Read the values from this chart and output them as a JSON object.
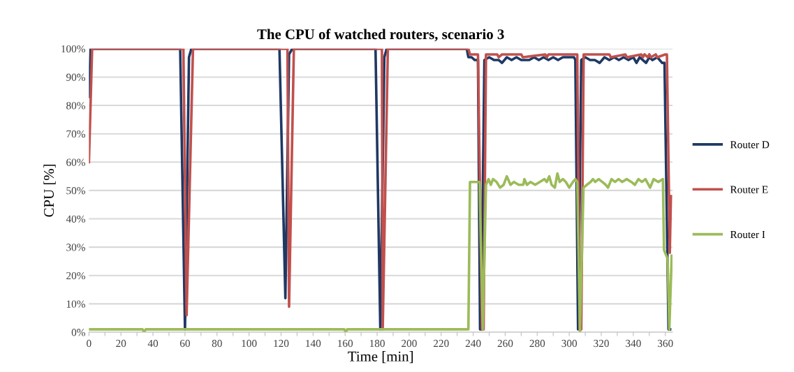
{
  "chart_data": {
    "type": "line",
    "title": "The CPU of watched routers, scenario 3",
    "xlabel": "Time [min]",
    "ylabel": "CPU [%]",
    "xlim": [
      0,
      364.5
    ],
    "ylim": [
      0,
      100
    ],
    "xticks": [
      0,
      {
        "value": 10,
        "label": null
      },
      20,
      {
        "value": 30,
        "label": null
      },
      40,
      {
        "value": 50,
        "label": null
      },
      60,
      {
        "value": 70,
        "label": null
      },
      80,
      {
        "value": 90,
        "label": null
      },
      100,
      {
        "value": 110,
        "label": null
      },
      120,
      {
        "value": 130,
        "label": null
      },
      140,
      {
        "value": 150,
        "label": null
      },
      160,
      {
        "value": 170,
        "label": null
      },
      180,
      {
        "value": 190,
        "label": null
      },
      200,
      {
        "value": 210,
        "label": null
      },
      220,
      {
        "value": 230,
        "label": null
      },
      240,
      {
        "value": 250,
        "label": null
      },
      260,
      {
        "value": 270,
        "label": null
      },
      280,
      {
        "value": 290,
        "label": null
      },
      300,
      {
        "value": 310,
        "label": null
      },
      320,
      {
        "value": 330,
        "label": null
      },
      340,
      {
        "value": 350,
        "label": null
      },
      360
    ],
    "yticks": [
      {
        "value": 0,
        "label": "0%"
      },
      {
        "value": 10,
        "label": "10%"
      },
      {
        "value": 20,
        "label": "20%"
      },
      {
        "value": 30,
        "label": "30%"
      },
      {
        "value": 40,
        "label": "40%"
      },
      {
        "value": 50,
        "label": "50%"
      },
      {
        "value": 60,
        "label": "60%"
      },
      {
        "value": 70,
        "label": "70%"
      },
      {
        "value": 80,
        "label": "80%"
      },
      {
        "value": 90,
        "label": "90%"
      },
      {
        "value": 100,
        "label": "100%"
      }
    ],
    "grid": "y",
    "legend": "right",
    "marker": "none",
    "line_style": "solid",
    "series": [
      {
        "name": "Router D",
        "color": "#1f3864",
        "x": [
          0,
          1,
          57,
          60,
          62.5,
          64,
          119,
          122.7,
          125,
          127,
          179,
          182,
          184.5,
          186,
          236,
          237,
          239,
          241,
          243,
          244.3,
          245,
          247,
          250,
          253,
          256,
          258,
          261,
          264,
          267,
          270,
          275,
          278,
          281,
          284,
          287,
          290,
          293,
          296,
          300,
          303,
          303.8,
          305.5,
          307.5,
          310,
          313,
          316,
          319,
          322,
          325,
          328,
          331,
          334,
          337,
          340,
          342,
          344,
          346,
          348,
          350,
          352,
          355,
          358,
          359.5,
          362,
          363
        ],
        "values": [
          83,
          100,
          100,
          1,
          97,
          100,
          100,
          12,
          98,
          100,
          100,
          1,
          97,
          100,
          100,
          97,
          97,
          96,
          96,
          1,
          1,
          96,
          97,
          96,
          96,
          95,
          97,
          96,
          97,
          96,
          96,
          97,
          96,
          97,
          96,
          97,
          96,
          97,
          97,
          97,
          96,
          1,
          96,
          97,
          96,
          96,
          95,
          97,
          96,
          97,
          96,
          97,
          96,
          97,
          95,
          97,
          96,
          95,
          97,
          96,
          97,
          95,
          95,
          1,
          1
        ]
      },
      {
        "name": "Router E",
        "color": "#c0504d",
        "x": [
          0,
          2,
          59,
          61,
          65,
          124,
          125,
          128,
          183,
          183.5,
          186.7,
          237,
          238,
          243,
          245.5,
          246.5,
          248,
          255,
          256,
          258,
          270,
          271,
          285,
          286,
          287,
          305,
          306.5,
          307.5,
          309,
          325,
          326,
          335,
          336,
          345,
          346,
          347,
          349,
          350,
          351,
          354,
          355,
          360,
          361,
          362.8,
          363.5
        ],
        "values": [
          60,
          100,
          100,
          6,
          100,
          100,
          9,
          100,
          100,
          1,
          100,
          100,
          98,
          98,
          1,
          1,
          98,
          98,
          97,
          98,
          98,
          97,
          98,
          97,
          98,
          98,
          1,
          1,
          98,
          98,
          97,
          98,
          97,
          98,
          97,
          98,
          97,
          98,
          97,
          98,
          97,
          98,
          98,
          28,
          48
        ]
      },
      {
        "name": "Router I",
        "color": "#9bbb59",
        "x": [
          0,
          33.5,
          34.5,
          35.5,
          159.5,
          160.4,
          161.3,
          237,
          238,
          244,
          246,
          248,
          249.6,
          251,
          252.4,
          254.6,
          256.8,
          259,
          261,
          263.3,
          265.5,
          268.4,
          271.3,
          272,
          273.6,
          275.8,
          278.7,
          281.6,
          284.5,
          286,
          287.5,
          289,
          291,
          292.6,
          294,
          296,
          297.9,
          300,
          302.3,
          303.8,
          305,
          306.7,
          308.9,
          311,
          313.3,
          314.8,
          316.2,
          318.4,
          320.6,
          322.8,
          324.2,
          326.4,
          328.6,
          330.8,
          333,
          335.9,
          338.8,
          341,
          343.2,
          345.4,
          347.6,
          350.5,
          352.7,
          355.6,
          358.5,
          359.2,
          361.4,
          362.5,
          364
        ],
        "values": [
          1,
          1,
          0,
          1,
          1,
          0,
          1,
          1,
          53,
          53,
          1,
          52,
          54,
          52,
          54,
          53,
          51,
          52,
          55,
          52,
          53,
          52,
          52,
          54,
          52,
          53,
          52,
          53,
          54,
          53,
          55,
          52,
          51,
          56,
          53,
          54,
          53,
          51,
          53,
          54,
          53,
          0,
          51,
          52,
          53,
          54,
          53,
          54,
          53,
          52,
          51,
          54,
          53,
          54,
          53,
          54,
          53,
          52,
          54,
          53,
          54,
          51,
          54,
          53,
          54,
          29,
          26,
          1,
          27
        ]
      }
    ]
  }
}
